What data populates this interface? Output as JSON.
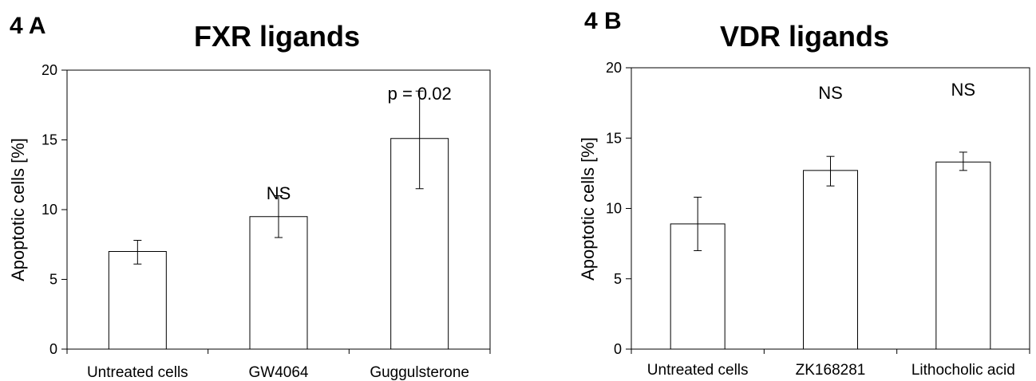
{
  "chart_data": [
    {
      "panel_label": "4 A",
      "type": "bar",
      "title": "FXR ligands",
      "xlabel": "",
      "ylabel": "Apoptotic cells [%]",
      "ylim": [
        0,
        20
      ],
      "yticks": [
        0,
        5,
        10,
        15,
        20
      ],
      "categories": [
        "Untreated cells",
        "GW4064",
        "Guggulsterone"
      ],
      "values": [
        7.0,
        9.5,
        15.1
      ],
      "error_low": [
        6.1,
        8.0,
        11.5
      ],
      "error_high": [
        7.8,
        11.0,
        18.5
      ],
      "annotations": [
        "",
        "NS",
        "p = 0.02"
      ],
      "grid": false
    },
    {
      "panel_label": "4 B",
      "type": "bar",
      "title": "VDR ligands",
      "xlabel": "",
      "ylabel": "Apoptotic cells [%]",
      "ylim": [
        0,
        20
      ],
      "yticks": [
        0,
        5,
        10,
        15,
        20
      ],
      "categories": [
        "Untreated cells",
        "ZK168281",
        "Lithocholic acid"
      ],
      "values": [
        8.9,
        12.7,
        13.3
      ],
      "error_low": [
        7.0,
        11.6,
        12.7
      ],
      "error_high": [
        10.8,
        13.7,
        14.0
      ],
      "annotations": [
        "",
        "NS",
        "NS"
      ],
      "grid": false
    }
  ]
}
